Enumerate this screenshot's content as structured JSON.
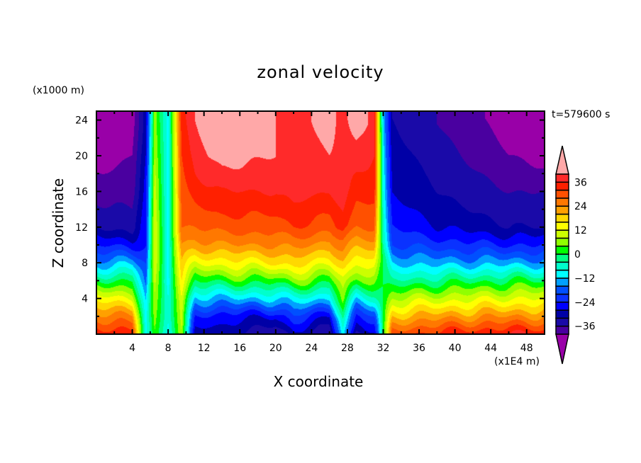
{
  "chart_data": {
    "type": "heatmap",
    "subtype": "filled-contour",
    "title": "zonal velocity",
    "xlabel": "X coordinate",
    "ylabel": "Z coordinate",
    "x_unit": "(x1E4 m)",
    "z_unit": "(x1000 m)",
    "time_label": "t=579600 s",
    "xlim": [
      0,
      50
    ],
    "ylim": [
      0,
      25
    ],
    "x_ticks": [
      4,
      8,
      12,
      16,
      20,
      24,
      28,
      32,
      36,
      40,
      44,
      48
    ],
    "y_ticks": [
      4,
      8,
      12,
      16,
      20,
      24
    ],
    "colorbar": {
      "levels_min": -40,
      "levels_max": 40,
      "interval": 4,
      "tick_labels": [
        "36",
        "24",
        "12",
        "0",
        "−12",
        "−24",
        "−36"
      ],
      "tick_values": [
        36,
        24,
        12,
        0,
        -12,
        -24,
        -36
      ],
      "colors": [
        "#4a00a0",
        "#1a0aa8",
        "#0000a6",
        "#0000ff",
        "#0a32ff",
        "#0050ff",
        "#00a0ff",
        "#00ffff",
        "#00ffcc",
        "#00ff80",
        "#00ff00",
        "#90ff00",
        "#ccff00",
        "#ffff00",
        "#ffd800",
        "#ffa000",
        "#ff7800",
        "#ff5000",
        "#ff2000",
        "#ff2a2a"
      ],
      "under_color": "#9900a8",
      "over_color": "#ffa8a8"
    },
    "grid_z": [
      0,
      2,
      4,
      6,
      8,
      10,
      12,
      16,
      20,
      24
    ],
    "grid_x": [
      0,
      4,
      5.5,
      6.5,
      8,
      9.5,
      11,
      14,
      20,
      22,
      26,
      27.5,
      29,
      31,
      32,
      33,
      38,
      46,
      50
    ],
    "values_by_x": [
      [
        36,
        26,
        14,
        0,
        -14,
        -24,
        -32,
        -38,
        -42,
        -44
      ],
      [
        34,
        24,
        12,
        0,
        -14,
        -26,
        -34,
        -38,
        -40,
        -42
      ],
      [
        -10,
        -10,
        -12,
        -18,
        -20,
        -24,
        -24,
        -26,
        -28,
        -30
      ],
      [
        4,
        6,
        8,
        10,
        12,
        12,
        12,
        10,
        8,
        6
      ],
      [
        -10,
        -8,
        -8,
        -10,
        -10,
        -10,
        -10,
        -10,
        -10,
        -10
      ],
      [
        8,
        10,
        12,
        16,
        20,
        24,
        28,
        30,
        32,
        34
      ],
      [
        -30,
        -24,
        -14,
        0,
        12,
        22,
        28,
        34,
        38,
        40
      ],
      [
        -30,
        -26,
        -12,
        2,
        14,
        24,
        30,
        36,
        42,
        44
      ],
      [
        -36,
        -28,
        -12,
        2,
        16,
        24,
        30,
        36,
        40,
        40
      ],
      [
        -30,
        -20,
        -8,
        6,
        18,
        26,
        32,
        38,
        38,
        38
      ],
      [
        -36,
        -28,
        -12,
        2,
        14,
        22,
        30,
        36,
        40,
        42
      ],
      [
        -10,
        -4,
        6,
        10,
        18,
        26,
        34,
        38,
        38,
        38
      ],
      [
        -34,
        -24,
        -10,
        4,
        14,
        22,
        28,
        34,
        38,
        44
      ],
      [
        -30,
        -20,
        -6,
        4,
        14,
        22,
        28,
        34,
        36,
        38
      ],
      [
        0,
        0,
        0,
        0,
        0,
        -4,
        -6,
        -8,
        -10,
        -12
      ],
      [
        30,
        20,
        8,
        -4,
        -12,
        -20,
        -24,
        -28,
        -30,
        -32
      ],
      [
        34,
        22,
        10,
        -2,
        -14,
        -22,
        -28,
        -32,
        -34,
        -36
      ],
      [
        36,
        24,
        12,
        0,
        -14,
        -24,
        -32,
        -36,
        -40,
        -42
      ],
      [
        36,
        24,
        12,
        0,
        -14,
        -24,
        -32,
        -36,
        -42,
        -44
      ]
    ]
  }
}
